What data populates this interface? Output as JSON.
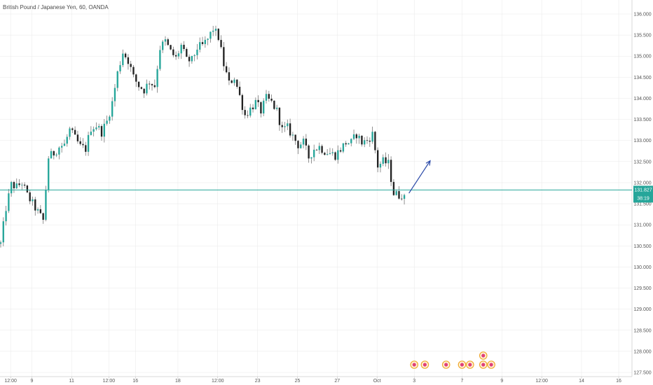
{
  "header": {
    "title": "British Pound / Japanese Yen, 60, OANDA"
  },
  "colors": {
    "up": "#26a69a",
    "down": "#222222",
    "wick": "#777777",
    "price_line": "#26a69a",
    "arrow": "#2b4aa8",
    "axis_text": "#555555",
    "grid": "#e8e8e8"
  },
  "price_badge": {
    "price": "131.827",
    "countdown": "38:19"
  },
  "chart_data": {
    "type": "candlestick",
    "title": "British Pound / Japanese Yen, 60, OANDA",
    "y_ticks": [
      "136.000",
      "135.500",
      "135.000",
      "134.500",
      "134.000",
      "133.500",
      "133.000",
      "132.500",
      "132.000",
      "131.500",
      "131.000",
      "130.500",
      "130.000",
      "129.500",
      "129.000",
      "128.500",
      "128.000",
      "127.500"
    ],
    "y_tick_values": [
      136.0,
      135.5,
      135.0,
      134.5,
      134.0,
      133.5,
      133.0,
      132.5,
      132.0,
      131.5,
      131.0,
      130.5,
      130.0,
      129.5,
      129.0,
      128.5,
      128.0,
      127.5
    ],
    "x_ticks": [
      "12:00",
      "9",
      "11",
      "12:00",
      "16",
      "18",
      "12:00",
      "23",
      "25",
      "27",
      "Oct",
      "3",
      "7",
      "9",
      "12:00",
      "14",
      "16"
    ],
    "x_tick_sessions": [
      4,
      12,
      27,
      41,
      51,
      67,
      82,
      97,
      112,
      127,
      142,
      156,
      174,
      189,
      204,
      219,
      233
    ],
    "ylim": [
      127.45,
      136.3
    ],
    "current_price": 131.827,
    "path_sessions": [
      0,
      2,
      4,
      6,
      8,
      10,
      12,
      14,
      16,
      18,
      20,
      22,
      24,
      26,
      28,
      30,
      32,
      34,
      36,
      38,
      40,
      42,
      44,
      46,
      48,
      50,
      52,
      54,
      56,
      58,
      60,
      62,
      64,
      66,
      68,
      70,
      72,
      74,
      76,
      78,
      80,
      82,
      84,
      86,
      88,
      90,
      92,
      94,
      96,
      98,
      100,
      102,
      104,
      106,
      108,
      110,
      112,
      114,
      116,
      118,
      120,
      122,
      124,
      126,
      128,
      130,
      132,
      134,
      136,
      138,
      140,
      142,
      144,
      146,
      148,
      150,
      152
    ],
    "close_path": [
      130.55,
      131.4,
      131.95,
      131.9,
      132.0,
      131.7,
      131.5,
      131.3,
      131.1,
      132.6,
      132.7,
      132.85,
      132.9,
      133.25,
      133.05,
      132.85,
      132.8,
      133.3,
      133.35,
      133.2,
      133.45,
      133.9,
      134.6,
      135.1,
      134.9,
      134.5,
      134.3,
      134.2,
      134.4,
      134.3,
      135.2,
      135.35,
      135.1,
      134.95,
      135.25,
      134.9,
      134.9,
      135.2,
      135.25,
      135.4,
      135.65,
      135.45,
      134.8,
      134.35,
      134.5,
      134.05,
      133.6,
      133.75,
      133.9,
      133.7,
      134.0,
      133.9,
      133.7,
      133.25,
      133.3,
      133.1,
      132.9,
      132.95,
      132.6,
      132.8,
      132.85,
      132.75,
      132.7,
      132.65,
      132.8,
      132.95,
      132.95,
      133.15,
      132.95,
      133.0,
      133.15,
      132.4,
      132.5,
      132.45,
      131.75,
      131.7,
      131.75
    ],
    "max_deviation": 0.22,
    "candle_count": 153,
    "session_count": 238,
    "annotations": [
      {
        "type": "arrow",
        "direction": "up",
        "from": {
          "session": 154,
          "price": 131.75
        },
        "to": {
          "session": 162,
          "price": 132.52
        }
      }
    ],
    "event_markers": [
      {
        "session": 156,
        "count": 1
      },
      {
        "session": 160,
        "count": 1
      },
      {
        "session": 168,
        "count": 1
      },
      {
        "session": 174,
        "count": 1
      },
      {
        "session": 177,
        "count": 1
      },
      {
        "session": 182,
        "count": 2
      },
      {
        "session": 185,
        "count": 1
      }
    ]
  }
}
